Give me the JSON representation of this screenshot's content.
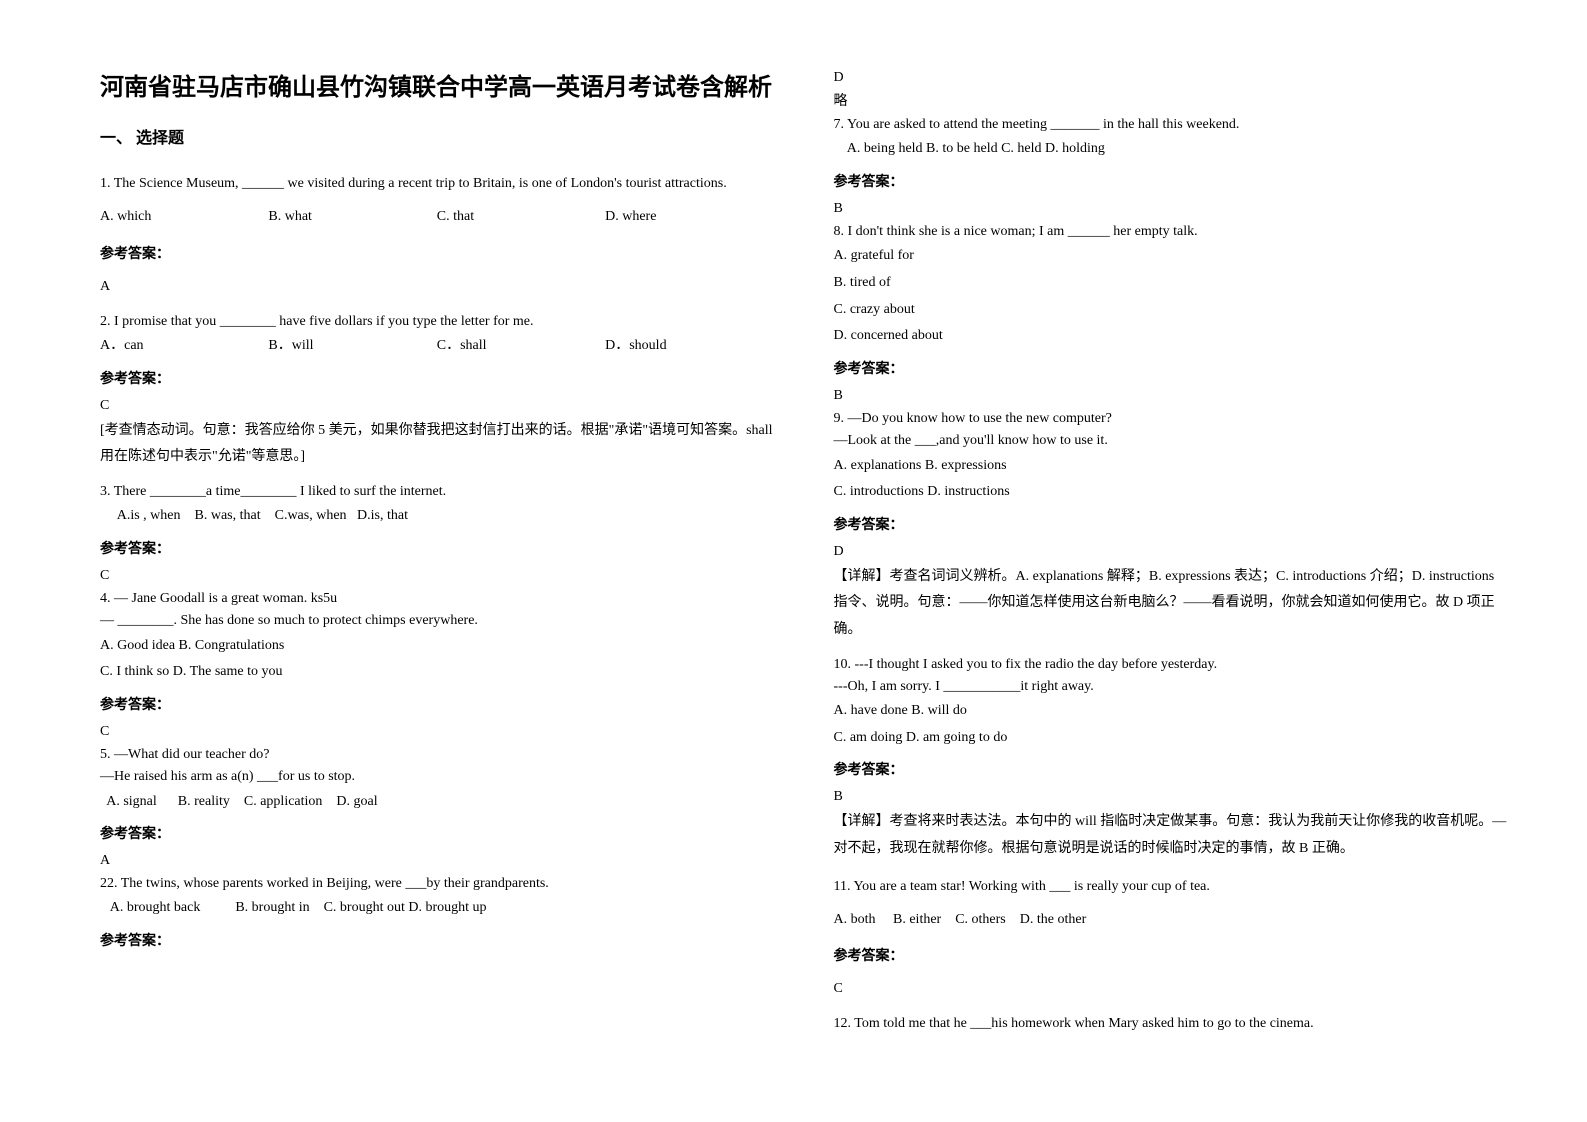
{
  "title": "河南省驻马店市确山县竹沟镇联合中学高一英语月考试卷含解析",
  "section1": "一、 选择题",
  "q1": {
    "stem": "1. The Science Museum, ______ we visited during a recent trip to Britain, is one of London's tourist attractions.",
    "optA": "A. which",
    "optB": "B. what",
    "optC": "C. that",
    "optD": "D. where",
    "ansLabel": "参考答案：",
    "ans": "A"
  },
  "q2": {
    "stem": "2. I promise that you ________ have five dollars if you type the letter for me.",
    "optA": "A．can",
    "optB": "B．will",
    "optC": "C．shall",
    "optD": "D．should",
    "ansLabel": "参考答案：",
    "ans": "C",
    "exp": "[考查情态动词。句意：我答应给你 5 美元，如果你替我把这封信打出来的话。根据\"承诺\"语境可知答案。shall 用在陈述句中表示\"允诺\"等意思。]"
  },
  "q3": {
    "stem": "3. There ________a time________ I liked to surf  the internet.",
    "opts": "     A.is , when    B. was, that    C.was, when   D.is, that",
    "ansLabel": "参考答案：",
    "ans": "C"
  },
  "q4": {
    "line1": "4. — Jane Goodall is a great woman. ks5u",
    "line2": "— ________. She has done so much to protect chimps everywhere.",
    "optA": "A. Good idea    B. Congratulations",
    "optC": "C. I think so     D. The same to you",
    "ansLabel": "参考答案：",
    "ans": "C"
  },
  "q5": {
    "line1": "5. —What did our teacher do?",
    "line2": "         —He raised his arm as a(n) ___for us to stop.",
    "opts": "  A. signal      B. reality    C. application    D. goal",
    "ansLabel": "参考答案：",
    "ans": "A"
  },
  "q22": {
    "stem": "22. The twins, whose parents worked in Beijing, were ___by their grandparents.",
    "opts": "   A. brought back          B. brought in    C. brought out D. brought up",
    "ansLabel": "参考答案："
  },
  "colR_top": {
    "ans": "D",
    "lue": "略"
  },
  "q7": {
    "stem": "7. You are asked to attend the meeting _______ in the hall this weekend.",
    "opts": "    A. being held B. to be held C. held D. holding",
    "ansLabel": "参考答案：",
    "ans": "B"
  },
  "q8": {
    "stem": "8. I don't think she is a nice woman; I am ______ her empty talk.",
    "optA": "A. grateful for",
    "optB": "B. tired of",
    "optC": "C. crazy about",
    "optD": "D. concerned about",
    "ansLabel": "参考答案：",
    "ans": "B"
  },
  "q9": {
    "line1": "9. —Do you know how to use the new computer?",
    "line2": "—Look at the ___,and you'll know how to use it.",
    "optA": "A. explanations    B. expressions",
    "optC": "C. introductions    D. instructions",
    "ansLabel": "参考答案：",
    "ans": "D",
    "exp": "【详解】考查名词词义辨析。A. explanations 解释；B. expressions 表达；C. introductions 介绍；D. instructions 指令、说明。句意：——你知道怎样使用这台新电脑么？——看看说明，你就会知道如何使用它。故 D 项正确。"
  },
  "q10": {
    "line1": "10. ---I thought I asked you to fix the radio the day before yesterday.",
    "line2": "---Oh, I am sorry. I ___________it right away.",
    "optA": "A. have done    B. will do",
    "optC": "C. am doing    D. am going to do",
    "ansLabel": "参考答案：",
    "ans": "B",
    "exp": "【详解】考查将来时表达法。本句中的 will 指临时决定做某事。句意：我认为我前天让你修我的收音机呢。—对不起，我现在就帮你修。根据句意说明是说话的时候临时决定的事情，故 B 正确。"
  },
  "q11": {
    "stem": "11. You are a team star! Working with ___ is really your cup of tea.",
    "opts": "A. both     B. either    C. others    D. the other",
    "ansLabel": "参考答案：",
    "ans": "C"
  },
  "q12": {
    "stem": "12. Tom told me that he ___his homework when Mary asked him to go to the cinema."
  }
}
